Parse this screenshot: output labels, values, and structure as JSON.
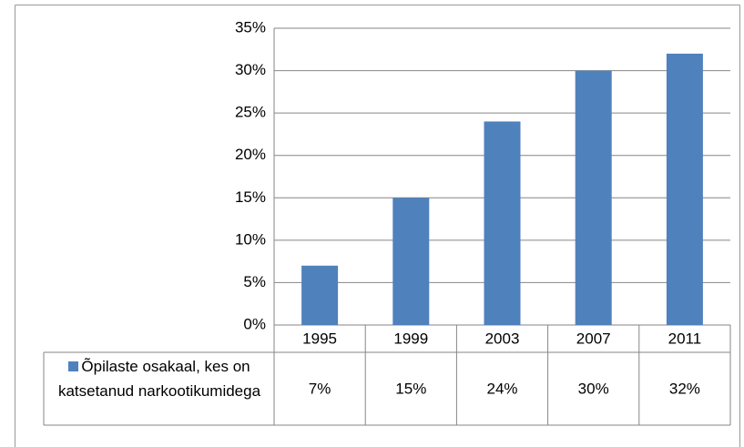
{
  "chart_data": {
    "type": "bar",
    "categories": [
      "1995",
      "1999",
      "2003",
      "2007",
      "2011"
    ],
    "series": [
      {
        "name": "Õpilaste osakaal, kes on katsetanud narkootikumidega",
        "color": "#4f81bd",
        "values": [
          7,
          15,
          24,
          30,
          32
        ],
        "value_labels": [
          "7%",
          "15%",
          "24%",
          "30%",
          "32%"
        ]
      }
    ],
    "ylim": [
      0,
      35
    ],
    "yticks": [
      {
        "value": 0,
        "label": "0%"
      },
      {
        "value": 5,
        "label": "5%"
      },
      {
        "value": 10,
        "label": "10%"
      },
      {
        "value": 15,
        "label": "15%"
      },
      {
        "value": 20,
        "label": "20%"
      },
      {
        "value": 25,
        "label": "25%"
      },
      {
        "value": 30,
        "label": "30%"
      },
      {
        "value": 35,
        "label": "35%"
      }
    ],
    "grid": true
  }
}
